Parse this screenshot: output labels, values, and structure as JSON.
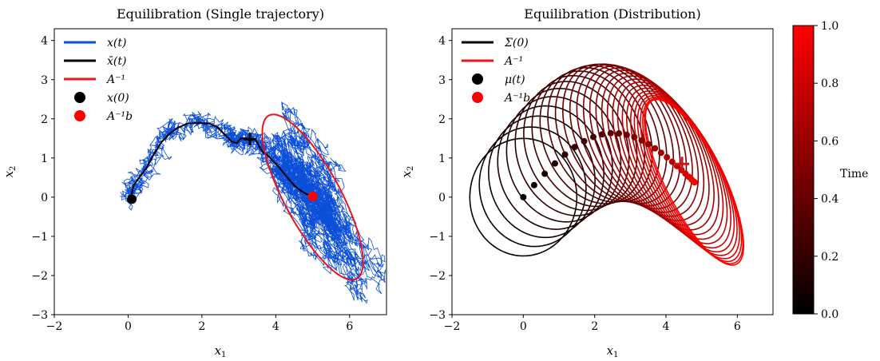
{
  "chart_data": [
    {
      "type": "line",
      "title": "Equilibration (Single trajectory)",
      "xlabel": "x",
      "xlabel_sub": "1",
      "ylabel": "x",
      "ylabel_sub": "2",
      "xlim": [
        -2,
        7
      ],
      "ylim": [
        -3,
        4.3
      ],
      "xticks": [
        -2,
        0,
        2,
        4,
        6
      ],
      "yticks": [
        -3,
        -2,
        -1,
        0,
        1,
        2,
        3,
        4
      ],
      "colors": {
        "trajectory": "#0b4fd9",
        "mean": "#000000",
        "ellipse": "#e8151b"
      },
      "legend": [
        "x(t)",
        "x̄(t)",
        "A⁻¹",
        "x(0)",
        "A⁻¹b"
      ],
      "legend_position": "top-left",
      "mean_path": [
        [
          0.1,
          0.0
        ],
        [
          0.1,
          0.1
        ],
        [
          0.15,
          0.3
        ],
        [
          0.3,
          0.5
        ],
        [
          0.5,
          0.75
        ],
        [
          0.7,
          1.1
        ],
        [
          0.9,
          1.4
        ],
        [
          1.1,
          1.6
        ],
        [
          1.3,
          1.75
        ],
        [
          1.6,
          1.88
        ],
        [
          1.9,
          1.9
        ],
        [
          2.2,
          1.88
        ],
        [
          2.4,
          1.8
        ],
        [
          2.6,
          1.62
        ],
        [
          2.8,
          1.42
        ],
        [
          2.95,
          1.38
        ],
        [
          3.05,
          1.5
        ],
        [
          3.2,
          1.5
        ],
        [
          3.3,
          1.45
        ],
        [
          3.45,
          1.48
        ],
        [
          3.55,
          1.3
        ],
        [
          3.65,
          1.15
        ],
        [
          3.8,
          1.05
        ],
        [
          3.95,
          0.9
        ],
        [
          4.1,
          0.75
        ],
        [
          4.3,
          0.52
        ],
        [
          4.5,
          0.3
        ],
        [
          4.7,
          0.15
        ],
        [
          4.95,
          0.02
        ]
      ],
      "start_point": [
        0.1,
        -0.05
      ],
      "target_point": [
        5.0,
        0.02
      ],
      "current_mean_marker": [
        3.3,
        1.48
      ],
      "ellipse": {
        "center": [
          5.0,
          0.0
        ],
        "semi_axes": [
          2.4,
          0.75
        ],
        "angle_deg": -60
      },
      "trajectory_cloud": {
        "center": [
          5.0,
          0.0
        ],
        "semi_axes": [
          2.4,
          0.75
        ],
        "angle_deg": -60
      }
    },
    {
      "type": "line",
      "title": "Equilibration (Distribution)",
      "xlabel": "x",
      "xlabel_sub": "1",
      "ylabel": "x",
      "ylabel_sub": "2",
      "xlim": [
        -2,
        7
      ],
      "ylim": [
        -3,
        4.3
      ],
      "xticks": [
        -2,
        0,
        2,
        4,
        6
      ],
      "yticks": [
        -3,
        -2,
        -1,
        0,
        1,
        2,
        3,
        4
      ],
      "legend": [
        "Σ(0)",
        "A⁻¹",
        "μ(t)",
        "A⁻¹b"
      ],
      "legend_position": "top-left",
      "colors": {
        "start": "#000000",
        "end": "#ff0000"
      },
      "initial_ellipse": {
        "center": [
          0,
          0
        ],
        "semi_axes": [
          1.5,
          1.5
        ],
        "angle_deg": 0
      },
      "final_ellipse": {
        "center": [
          4.8,
          0.38
        ],
        "semi_axes": [
          2.4,
          0.78
        ],
        "angle_deg": -60
      },
      "num_ellipses": 30,
      "mean_points_t": [
        0.0,
        0.04,
        0.08,
        0.12,
        0.16,
        0.2,
        0.24,
        0.28,
        0.32,
        0.36,
        0.4,
        0.44,
        0.48,
        0.52,
        0.56,
        0.6,
        0.64,
        0.68,
        0.72,
        0.76,
        0.8,
        0.84,
        0.88,
        0.92,
        0.96,
        1.0
      ],
      "current_mean_marker": [
        4.45,
        0.85
      ],
      "target_point": [
        4.8,
        0.38
      ],
      "colorbar": {
        "label": "Time",
        "min": 0.0,
        "max": 1.0,
        "ticks": [
          "0.0",
          "0.2",
          "0.4",
          "0.6",
          "0.8",
          "1.0"
        ]
      }
    }
  ]
}
